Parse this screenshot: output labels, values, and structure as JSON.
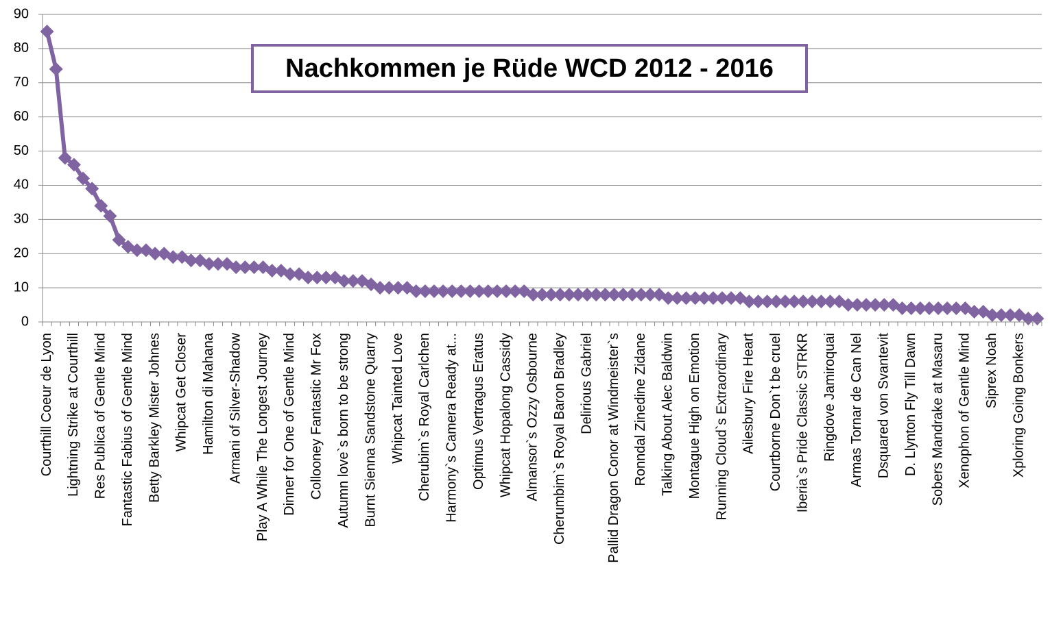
{
  "chart_data": {
    "type": "line",
    "title": "Nachkommen je Rüde WCD 2012 - 2016",
    "categories": [
      "Courthill Coeur de Lyon",
      null,
      null,
      "Lightning Strike at Courthill",
      null,
      null,
      "Res Publica of Gentle Mind",
      null,
      null,
      "Fantastic Fabius of Gentle Mind",
      null,
      null,
      "Betty Barkley Mister Johnes",
      null,
      null,
      "Whipcat Get Closer",
      null,
      null,
      "Hamilton di Mahana",
      null,
      null,
      "Armani of Silver-Shadow",
      null,
      null,
      "Play A While The Longest Journey",
      null,
      null,
      "Dinner for One of Gentle Mind",
      null,
      null,
      "Collooney Fantastic Mr Fox",
      null,
      null,
      "Autumn love`s born to be strong",
      null,
      null,
      "Burnt Sienna Sandstone Quarry",
      null,
      null,
      "Whipcat Tainted Love",
      null,
      null,
      "Cherubim`s Royal Carlchen",
      null,
      null,
      "Harmony`s Camera Ready at...",
      null,
      null,
      "Optimus Vertragus Eratus",
      null,
      null,
      "Whipcat Hopalong Cassidy",
      null,
      null,
      "Almansor`s Ozzy Osbourne",
      null,
      null,
      "Cherumbim`s Royal Baron Bradley",
      null,
      null,
      "Delirious Gabriel",
      null,
      null,
      "Pallid Dragon Conor at Windmeister`s",
      null,
      null,
      "Ronndal Zinedine Zidane",
      null,
      null,
      "Talking About Alec Baldwin",
      null,
      null,
      "Montague High on Emotion",
      null,
      null,
      "Running Cloud`s Extraordinary",
      null,
      null,
      "Ailesbury Fire Heart",
      null,
      null,
      "Courtborne Don`t be cruel",
      null,
      null,
      "Iberia`s Pride Classic STRKR",
      null,
      null,
      "Ringdove Jamiroquai",
      null,
      null,
      "Armas Tornar de Can Nel",
      null,
      null,
      "Dsquared von Svantevit",
      null,
      null,
      "D. Llynton Fly Till Dawn",
      null,
      null,
      "Sobers Mandrake at Masaru",
      null,
      null,
      "Xenophon of Gentle Mind",
      null,
      null,
      "Siprex Noah",
      null,
      null,
      "Xploring Going Bonkers",
      null,
      null
    ],
    "series": [
      {
        "color": "#8064a2",
        "values": [
          85,
          74,
          48,
          46,
          42,
          39,
          34,
          31,
          24,
          22,
          21,
          21,
          20,
          20,
          19,
          19,
          18,
          18,
          17,
          17,
          17,
          16,
          16,
          16,
          16,
          15,
          15,
          14,
          14,
          13,
          13,
          13,
          13,
          12,
          12,
          12,
          11,
          10,
          10,
          10,
          10,
          9,
          9,
          9,
          9,
          9,
          9,
          9,
          9,
          9,
          9,
          9,
          9,
          9,
          8,
          8,
          8,
          8,
          8,
          8,
          8,
          8,
          8,
          8,
          8,
          8,
          8,
          8,
          8,
          7,
          7,
          7,
          7,
          7,
          7,
          7,
          7,
          7,
          6,
          6,
          6,
          6,
          6,
          6,
          6,
          6,
          6,
          6,
          6,
          5,
          5,
          5,
          5,
          5,
          5,
          4,
          4,
          4,
          4,
          4,
          4,
          4,
          4,
          3,
          3,
          2,
          2,
          2,
          2,
          1,
          1
        ]
      }
    ],
    "ylim": [
      0,
      90
    ],
    "yticks": [
      0,
      10,
      20,
      30,
      40,
      50,
      60,
      70,
      80,
      90
    ],
    "grid": true
  }
}
